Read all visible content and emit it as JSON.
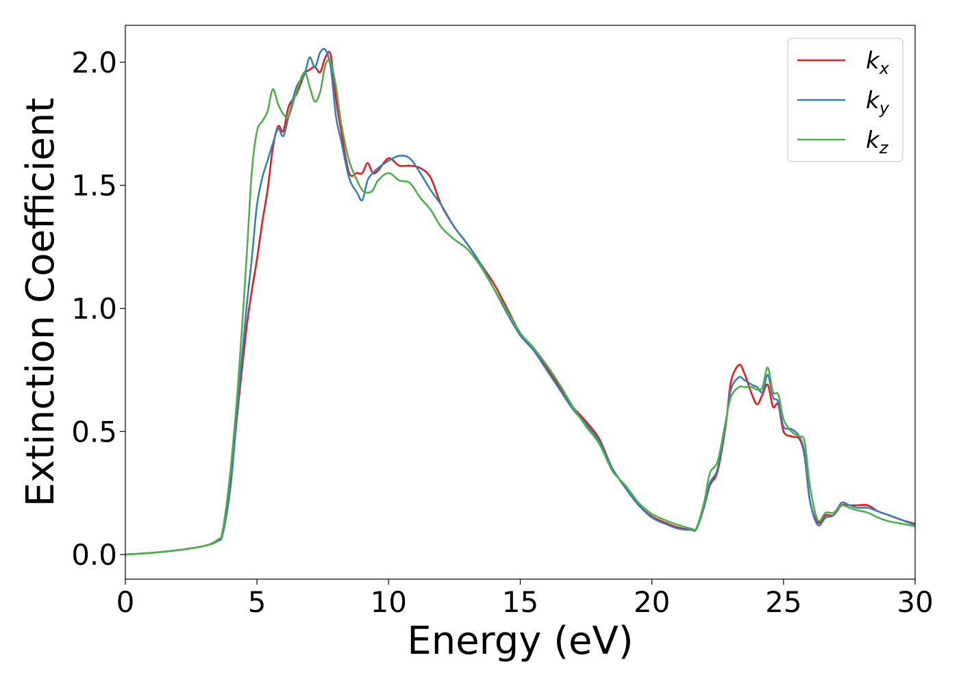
{
  "chart_data": {
    "type": "line",
    "title": "",
    "xlabel": "Energy (eV)",
    "ylabel": "Extinction Coefficient",
    "xlim": [
      0,
      30
    ],
    "ylim": [
      -0.1,
      2.15
    ],
    "xticks": [
      0,
      5,
      10,
      15,
      20,
      25,
      30
    ],
    "xtick_labels": [
      "0",
      "5",
      "10",
      "15",
      "20",
      "25",
      "30"
    ],
    "yticks": [
      0.0,
      0.5,
      1.0,
      1.5,
      2.0
    ],
    "ytick_labels": [
      "0.0",
      "0.5",
      "1.0",
      "1.5",
      "2.0"
    ],
    "grid": false,
    "legend": "top-right",
    "series": [
      {
        "name": "k_x",
        "legend_main": "k",
        "legend_sub": "x",
        "color": "#e41a1c",
        "x": [
          0,
          1,
          2,
          3,
          3.5,
          3.7,
          4.0,
          4.3,
          4.6,
          4.8,
          5.0,
          5.2,
          5.4,
          5.6,
          5.8,
          6.0,
          6.2,
          6.5,
          6.8,
          7.0,
          7.2,
          7.4,
          7.6,
          7.8,
          8.0,
          8.2,
          8.5,
          8.8,
          9.0,
          9.2,
          9.4,
          9.6,
          10.0,
          10.4,
          10.8,
          11.2,
          11.6,
          12.0,
          12.5,
          13.0,
          13.5,
          14.0,
          14.5,
          15.0,
          15.5,
          16.0,
          16.5,
          17.0,
          17.5,
          18.0,
          18.5,
          19.0,
          19.5,
          20.0,
          20.5,
          21.0,
          21.5,
          21.7,
          22.0,
          22.2,
          22.5,
          22.8,
          23.0,
          23.3,
          23.5,
          23.8,
          24.0,
          24.2,
          24.4,
          24.6,
          24.8,
          25.0,
          25.3,
          25.6,
          25.8,
          26.0,
          26.3,
          26.6,
          26.9,
          27.2,
          27.5,
          27.8,
          28.2,
          28.6,
          29.0,
          29.5,
          30.0
        ],
        "y": [
          0,
          0.007,
          0.018,
          0.035,
          0.055,
          0.09,
          0.3,
          0.62,
          0.92,
          1.07,
          1.2,
          1.35,
          1.48,
          1.65,
          1.74,
          1.72,
          1.82,
          1.87,
          1.95,
          1.97,
          1.98,
          1.96,
          2.02,
          2.03,
          1.85,
          1.72,
          1.55,
          1.55,
          1.55,
          1.59,
          1.55,
          1.56,
          1.61,
          1.58,
          1.58,
          1.57,
          1.53,
          1.42,
          1.33,
          1.26,
          1.18,
          1.1,
          1.0,
          0.9,
          0.84,
          0.76,
          0.68,
          0.6,
          0.54,
          0.47,
          0.35,
          0.27,
          0.2,
          0.155,
          0.13,
          0.11,
          0.1,
          0.105,
          0.2,
          0.28,
          0.34,
          0.52,
          0.7,
          0.77,
          0.74,
          0.65,
          0.61,
          0.65,
          0.69,
          0.6,
          0.61,
          0.5,
          0.48,
          0.47,
          0.4,
          0.22,
          0.13,
          0.16,
          0.16,
          0.2,
          0.2,
          0.2,
          0.2,
          0.175,
          0.16,
          0.14,
          0.125
        ]
      },
      {
        "name": "k_y",
        "legend_main": "k",
        "legend_sub": "y",
        "color": "#377eb8",
        "x": [
          0,
          1,
          2,
          3,
          3.5,
          3.7,
          4.0,
          4.3,
          4.6,
          4.8,
          5.0,
          5.2,
          5.4,
          5.6,
          5.8,
          6.0,
          6.2,
          6.5,
          6.8,
          7.0,
          7.2,
          7.4,
          7.6,
          7.8,
          8.0,
          8.2,
          8.5,
          8.8,
          9.0,
          9.2,
          9.4,
          9.6,
          10.0,
          10.4,
          10.8,
          11.2,
          11.6,
          12.0,
          12.5,
          13.0,
          13.5,
          14.0,
          14.5,
          15.0,
          15.5,
          16.0,
          16.5,
          17.0,
          17.5,
          18.0,
          18.5,
          19.0,
          19.5,
          20.0,
          20.5,
          21.0,
          21.5,
          21.7,
          22.0,
          22.2,
          22.5,
          22.8,
          23.0,
          23.3,
          23.5,
          23.8,
          24.0,
          24.2,
          24.4,
          24.6,
          24.8,
          25.0,
          25.3,
          25.6,
          25.8,
          26.0,
          26.3,
          26.6,
          26.9,
          27.2,
          27.5,
          27.8,
          28.2,
          28.6,
          29.0,
          29.5,
          30.0
        ],
        "y": [
          0,
          0.007,
          0.018,
          0.035,
          0.055,
          0.085,
          0.28,
          0.65,
          1.0,
          1.2,
          1.42,
          1.53,
          1.6,
          1.67,
          1.73,
          1.7,
          1.78,
          1.9,
          1.95,
          2.02,
          1.98,
          2.04,
          2.05,
          1.98,
          1.78,
          1.68,
          1.53,
          1.47,
          1.44,
          1.52,
          1.55,
          1.57,
          1.6,
          1.62,
          1.61,
          1.55,
          1.48,
          1.42,
          1.33,
          1.26,
          1.18,
          1.08,
          0.98,
          0.89,
          0.83,
          0.75,
          0.67,
          0.59,
          0.53,
          0.46,
          0.35,
          0.27,
          0.2,
          0.15,
          0.125,
          0.105,
          0.1,
          0.105,
          0.2,
          0.29,
          0.35,
          0.53,
          0.67,
          0.72,
          0.71,
          0.69,
          0.68,
          0.66,
          0.73,
          0.64,
          0.62,
          0.52,
          0.51,
          0.48,
          0.41,
          0.22,
          0.12,
          0.15,
          0.16,
          0.21,
          0.2,
          0.19,
          0.19,
          0.175,
          0.16,
          0.14,
          0.12
        ]
      },
      {
        "name": "k_z",
        "legend_main": "k",
        "legend_sub": "z",
        "color": "#4daf4a",
        "x": [
          0,
          1,
          2,
          3,
          3.5,
          3.7,
          4.0,
          4.3,
          4.6,
          4.8,
          5.0,
          5.2,
          5.4,
          5.6,
          5.8,
          6.0,
          6.2,
          6.5,
          6.8,
          7.0,
          7.2,
          7.4,
          7.6,
          7.8,
          8.0,
          8.2,
          8.5,
          8.8,
          9.0,
          9.2,
          9.4,
          9.6,
          10.0,
          10.4,
          10.8,
          11.2,
          11.6,
          12.0,
          12.5,
          13.0,
          13.5,
          14.0,
          14.5,
          15.0,
          15.5,
          16.0,
          16.5,
          17.0,
          17.5,
          18.0,
          18.5,
          19.0,
          19.5,
          20.0,
          20.5,
          21.0,
          21.5,
          21.7,
          22.0,
          22.2,
          22.5,
          22.8,
          23.0,
          23.3,
          23.5,
          23.8,
          24.0,
          24.2,
          24.4,
          24.6,
          24.8,
          25.0,
          25.3,
          25.6,
          25.8,
          26.0,
          26.3,
          26.6,
          26.9,
          27.2,
          27.5,
          27.8,
          28.2,
          28.6,
          29.0,
          29.5,
          30.0
        ],
        "y": [
          0,
          0.007,
          0.018,
          0.035,
          0.06,
          0.1,
          0.35,
          0.72,
          1.2,
          1.55,
          1.72,
          1.76,
          1.8,
          1.89,
          1.83,
          1.79,
          1.78,
          1.88,
          1.96,
          1.9,
          1.84,
          1.88,
          1.99,
          2.0,
          1.9,
          1.75,
          1.6,
          1.52,
          1.48,
          1.47,
          1.48,
          1.52,
          1.55,
          1.52,
          1.51,
          1.45,
          1.4,
          1.33,
          1.28,
          1.24,
          1.17,
          1.08,
          0.99,
          0.9,
          0.84,
          0.77,
          0.69,
          0.6,
          0.52,
          0.45,
          0.34,
          0.28,
          0.21,
          0.165,
          0.14,
          0.12,
          0.105,
          0.11,
          0.22,
          0.33,
          0.38,
          0.54,
          0.64,
          0.68,
          0.68,
          0.68,
          0.67,
          0.68,
          0.76,
          0.66,
          0.65,
          0.55,
          0.5,
          0.48,
          0.46,
          0.28,
          0.14,
          0.17,
          0.17,
          0.2,
          0.19,
          0.18,
          0.17,
          0.15,
          0.135,
          0.125,
          0.115
        ]
      }
    ]
  }
}
